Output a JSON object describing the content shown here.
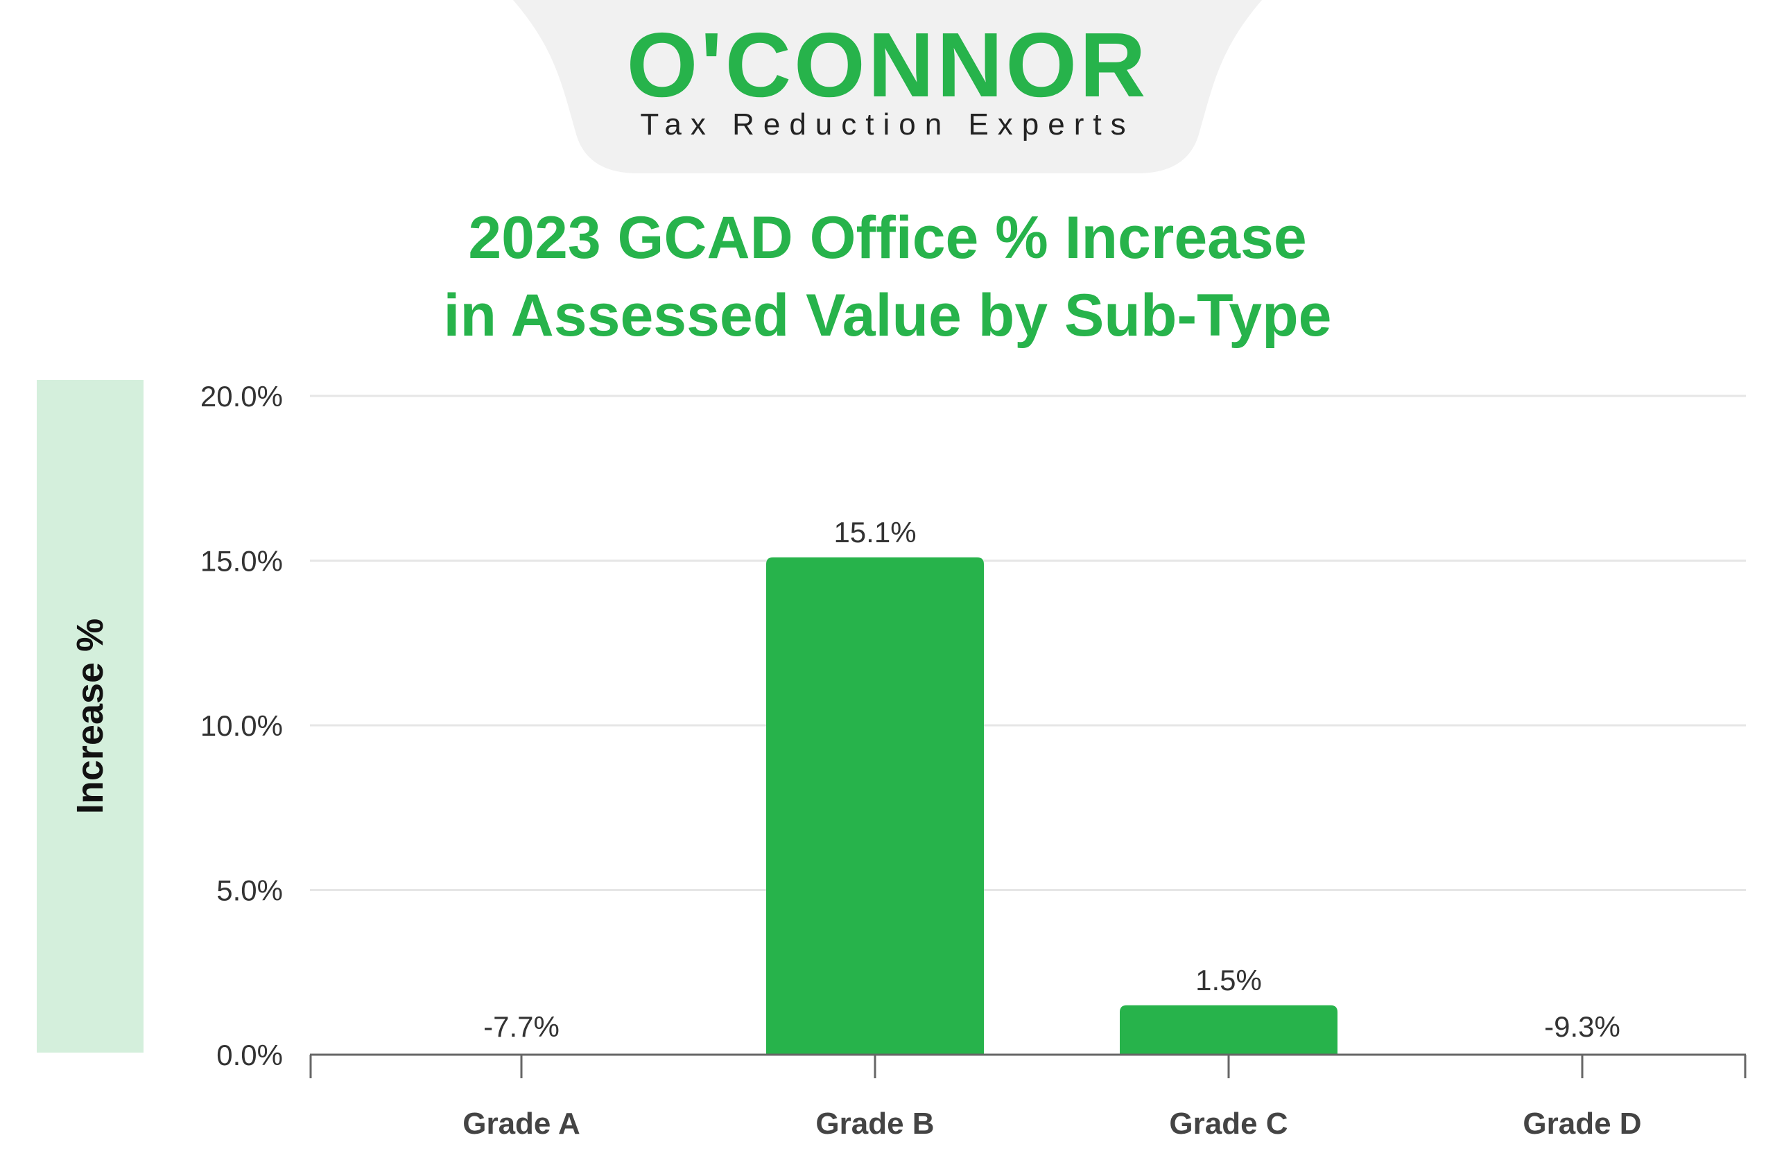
{
  "logo": {
    "name": "O'CONNOR",
    "tagline": "Tax Reduction Experts"
  },
  "colors": {
    "brand_green": "#27b34b",
    "band_green": "#d4efdc",
    "grid": "#e6e6e6",
    "axis": "#666666",
    "text": "#333333"
  },
  "chart_data": {
    "type": "bar",
    "title": [
      "2023 GCAD Office % Increase",
      "in Assessed Value by Sub-Type"
    ],
    "ylabel": "Increase %",
    "xlabel": "",
    "categories": [
      "Grade A",
      "Grade B",
      "Grade C",
      "Grade D"
    ],
    "values": [
      -7.7,
      15.1,
      1.5,
      -9.3
    ],
    "data_labels": [
      "-7.7%",
      "15.1%",
      "1.5%",
      "-9.3%"
    ],
    "ylim": [
      0,
      20
    ],
    "yticks": [
      0,
      5,
      10,
      15,
      20
    ],
    "ytick_labels": [
      "0.0%",
      "5.0%",
      "10.0%",
      "15.0%",
      "20.0%"
    ],
    "grid": true,
    "legend": "none"
  }
}
